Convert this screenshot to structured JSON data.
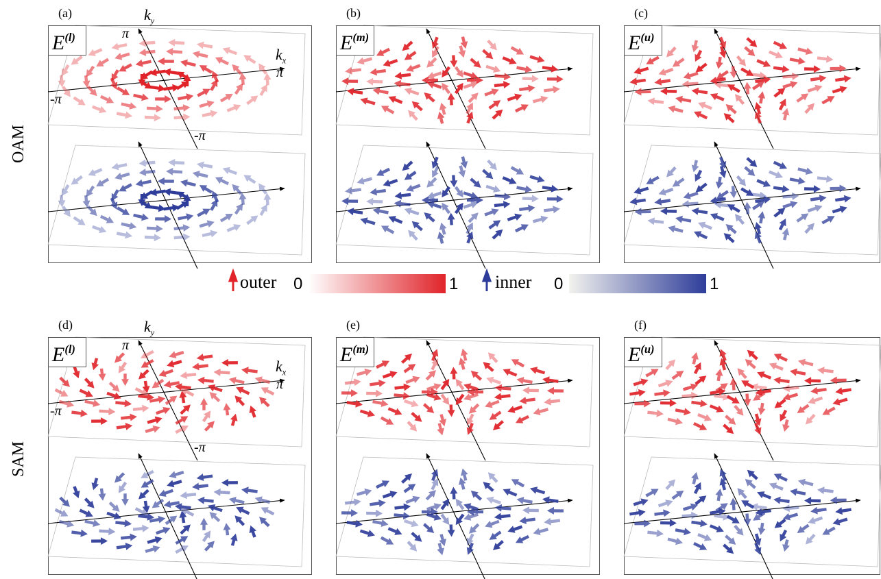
{
  "row_labels": [
    "OAM",
    "SAM"
  ],
  "panels": [
    {
      "label": "(a)",
      "energy": {
        "base": "E",
        "sup": "(l)"
      }
    },
    {
      "label": "(b)",
      "energy": {
        "base": "E",
        "sup": "(m)"
      }
    },
    {
      "label": "(c)",
      "energy": {
        "base": "E",
        "sup": "(u)"
      }
    },
    {
      "label": "(d)",
      "energy": {
        "base": "E",
        "sup": "(l)"
      }
    },
    {
      "label": "(e)",
      "energy": {
        "base": "E",
        "sup": "(m)"
      }
    },
    {
      "label": "(f)",
      "energy": {
        "base": "E",
        "sup": "(u)"
      }
    }
  ],
  "axes_labels": {
    "ky": {
      "base": "k",
      "sub": "y"
    },
    "kx": {
      "base": "k",
      "sub": "x"
    },
    "pi": "π",
    "minus_pi": "-π"
  },
  "colorbar": {
    "outer": {
      "name": "outer",
      "min": 0,
      "max": 1
    },
    "inner": {
      "name": "inner",
      "min": 0,
      "max": 1
    }
  }
}
